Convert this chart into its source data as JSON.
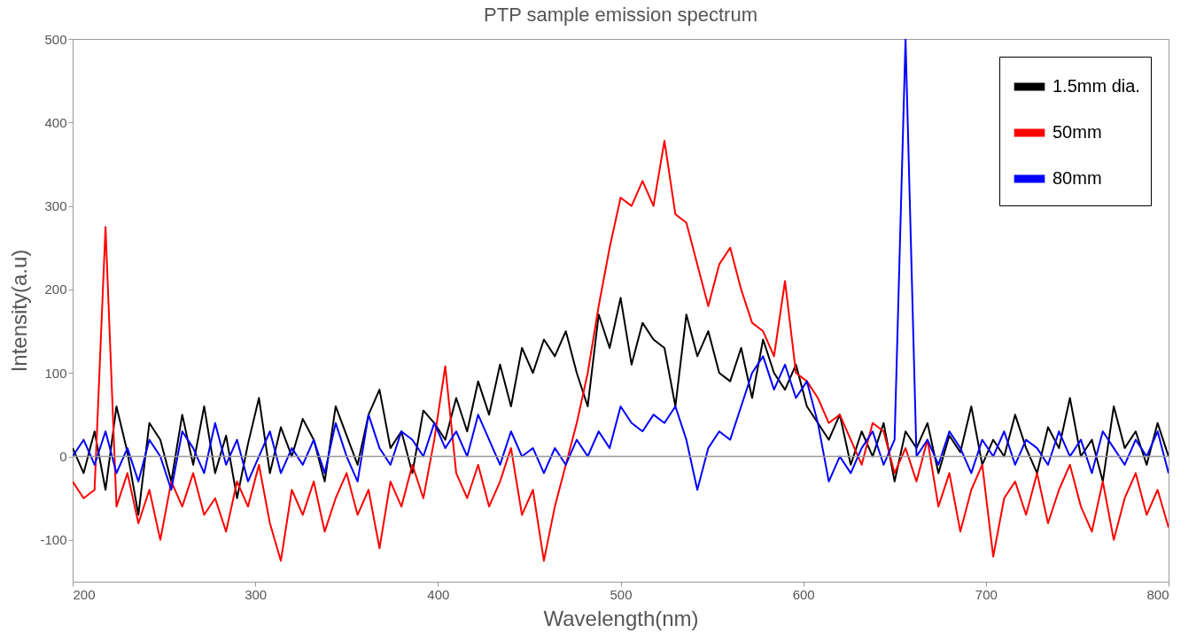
{
  "chart_data": {
    "type": "line",
    "title": "PTP sample emission spectrum",
    "xlabel": "Wavelength(nm)",
    "ylabel": "Intensity(a.u)",
    "x": [
      200,
      206,
      212,
      218,
      224,
      230,
      236,
      242,
      248,
      254,
      260,
      266,
      272,
      278,
      284,
      290,
      296,
      302,
      308,
      314,
      320,
      326,
      332,
      338,
      344,
      350,
      356,
      362,
      368,
      374,
      380,
      386,
      392,
      398,
      404,
      410,
      416,
      422,
      428,
      434,
      440,
      446,
      452,
      458,
      464,
      470,
      476,
      482,
      488,
      494,
      500,
      506,
      512,
      518,
      524,
      530,
      536,
      542,
      548,
      554,
      560,
      566,
      572,
      578,
      584,
      590,
      596,
      602,
      608,
      614,
      620,
      626,
      632,
      638,
      644,
      650,
      656,
      662,
      668,
      674,
      680,
      686,
      692,
      698,
      704,
      710,
      716,
      722,
      728,
      734,
      740,
      746,
      752,
      758,
      764,
      770,
      776,
      782,
      788,
      794,
      800
    ],
    "series": [
      {
        "name": "1.5mm dia.",
        "color": "#000000",
        "values": [
          10,
          -20,
          30,
          -40,
          60,
          5,
          -70,
          40,
          20,
          -30,
          50,
          -10,
          60,
          -20,
          25,
          -50,
          15,
          70,
          -20,
          35,
          0,
          45,
          20,
          -30,
          60,
          25,
          -10,
          50,
          80,
          10,
          30,
          -20,
          55,
          40,
          20,
          70,
          30,
          90,
          50,
          110,
          60,
          130,
          100,
          140,
          120,
          150,
          100,
          60,
          170,
          130,
          190,
          110,
          160,
          140,
          130,
          60,
          170,
          120,
          150,
          100,
          90,
          130,
          70,
          140,
          100,
          80,
          110,
          60,
          40,
          20,
          50,
          -10,
          30,
          0,
          40,
          -30,
          30,
          10,
          40,
          -20,
          25,
          5,
          60,
          -10,
          20,
          0,
          50,
          10,
          -20,
          35,
          10,
          70,
          0,
          20,
          -30,
          60,
          10,
          30,
          -10,
          40,
          0
        ]
      },
      {
        "name": "50mm",
        "color": "#ff0000",
        "values": [
          -30,
          -50,
          -40,
          275,
          -60,
          -20,
          -80,
          -40,
          -100,
          -30,
          -60,
          -20,
          -70,
          -50,
          -90,
          -30,
          -60,
          -10,
          -80,
          -125,
          -40,
          -70,
          -30,
          -90,
          -50,
          -20,
          -70,
          -40,
          -110,
          -30,
          -60,
          -10,
          -50,
          20,
          108,
          -20,
          -50,
          -10,
          -60,
          -30,
          10,
          -70,
          -40,
          -125,
          -60,
          -10,
          40,
          100,
          180,
          250,
          310,
          300,
          330,
          300,
          378,
          290,
          280,
          230,
          180,
          230,
          250,
          200,
          160,
          150,
          120,
          210,
          100,
          90,
          70,
          40,
          50,
          20,
          -10,
          40,
          30,
          -20,
          10,
          -30,
          20,
          -60,
          -20,
          -90,
          -40,
          -10,
          -120,
          -50,
          -30,
          -70,
          -20,
          -80,
          -40,
          -10,
          -60,
          -90,
          -30,
          -100,
          -50,
          -20,
          -70,
          -40,
          -85
        ]
      },
      {
        "name": "80mm",
        "color": "#0000ff",
        "values": [
          0,
          20,
          -10,
          30,
          -20,
          10,
          -30,
          20,
          0,
          -40,
          30,
          10,
          -20,
          40,
          -10,
          20,
          -30,
          0,
          30,
          -20,
          10,
          -10,
          20,
          -20,
          40,
          0,
          -30,
          50,
          10,
          -10,
          30,
          20,
          0,
          40,
          10,
          30,
          0,
          50,
          20,
          -10,
          30,
          0,
          10,
          -20,
          10,
          -10,
          20,
          0,
          30,
          10,
          60,
          40,
          30,
          50,
          40,
          60,
          20,
          -40,
          10,
          30,
          20,
          60,
          100,
          120,
          80,
          110,
          70,
          90,
          40,
          -30,
          0,
          -20,
          10,
          30,
          -10,
          20,
          500,
          0,
          20,
          -10,
          30,
          10,
          -20,
          20,
          0,
          30,
          -10,
          20,
          10,
          -10,
          30,
          0,
          20,
          -20,
          30,
          10,
          -10,
          20,
          0,
          30,
          -20
        ]
      }
    ],
    "xlim": [
      200,
      800
    ],
    "xticks": [
      200,
      300,
      400,
      500,
      600,
      700,
      800
    ],
    "ylim": [
      -150,
      500
    ],
    "yticks": [
      -100,
      0,
      100,
      200,
      300,
      400,
      500
    ],
    "ref_lines": [
      {
        "axis": "y",
        "value": 0,
        "color": "#999999"
      }
    ],
    "grid": false,
    "legend": "top right",
    "line_style": "solid"
  }
}
